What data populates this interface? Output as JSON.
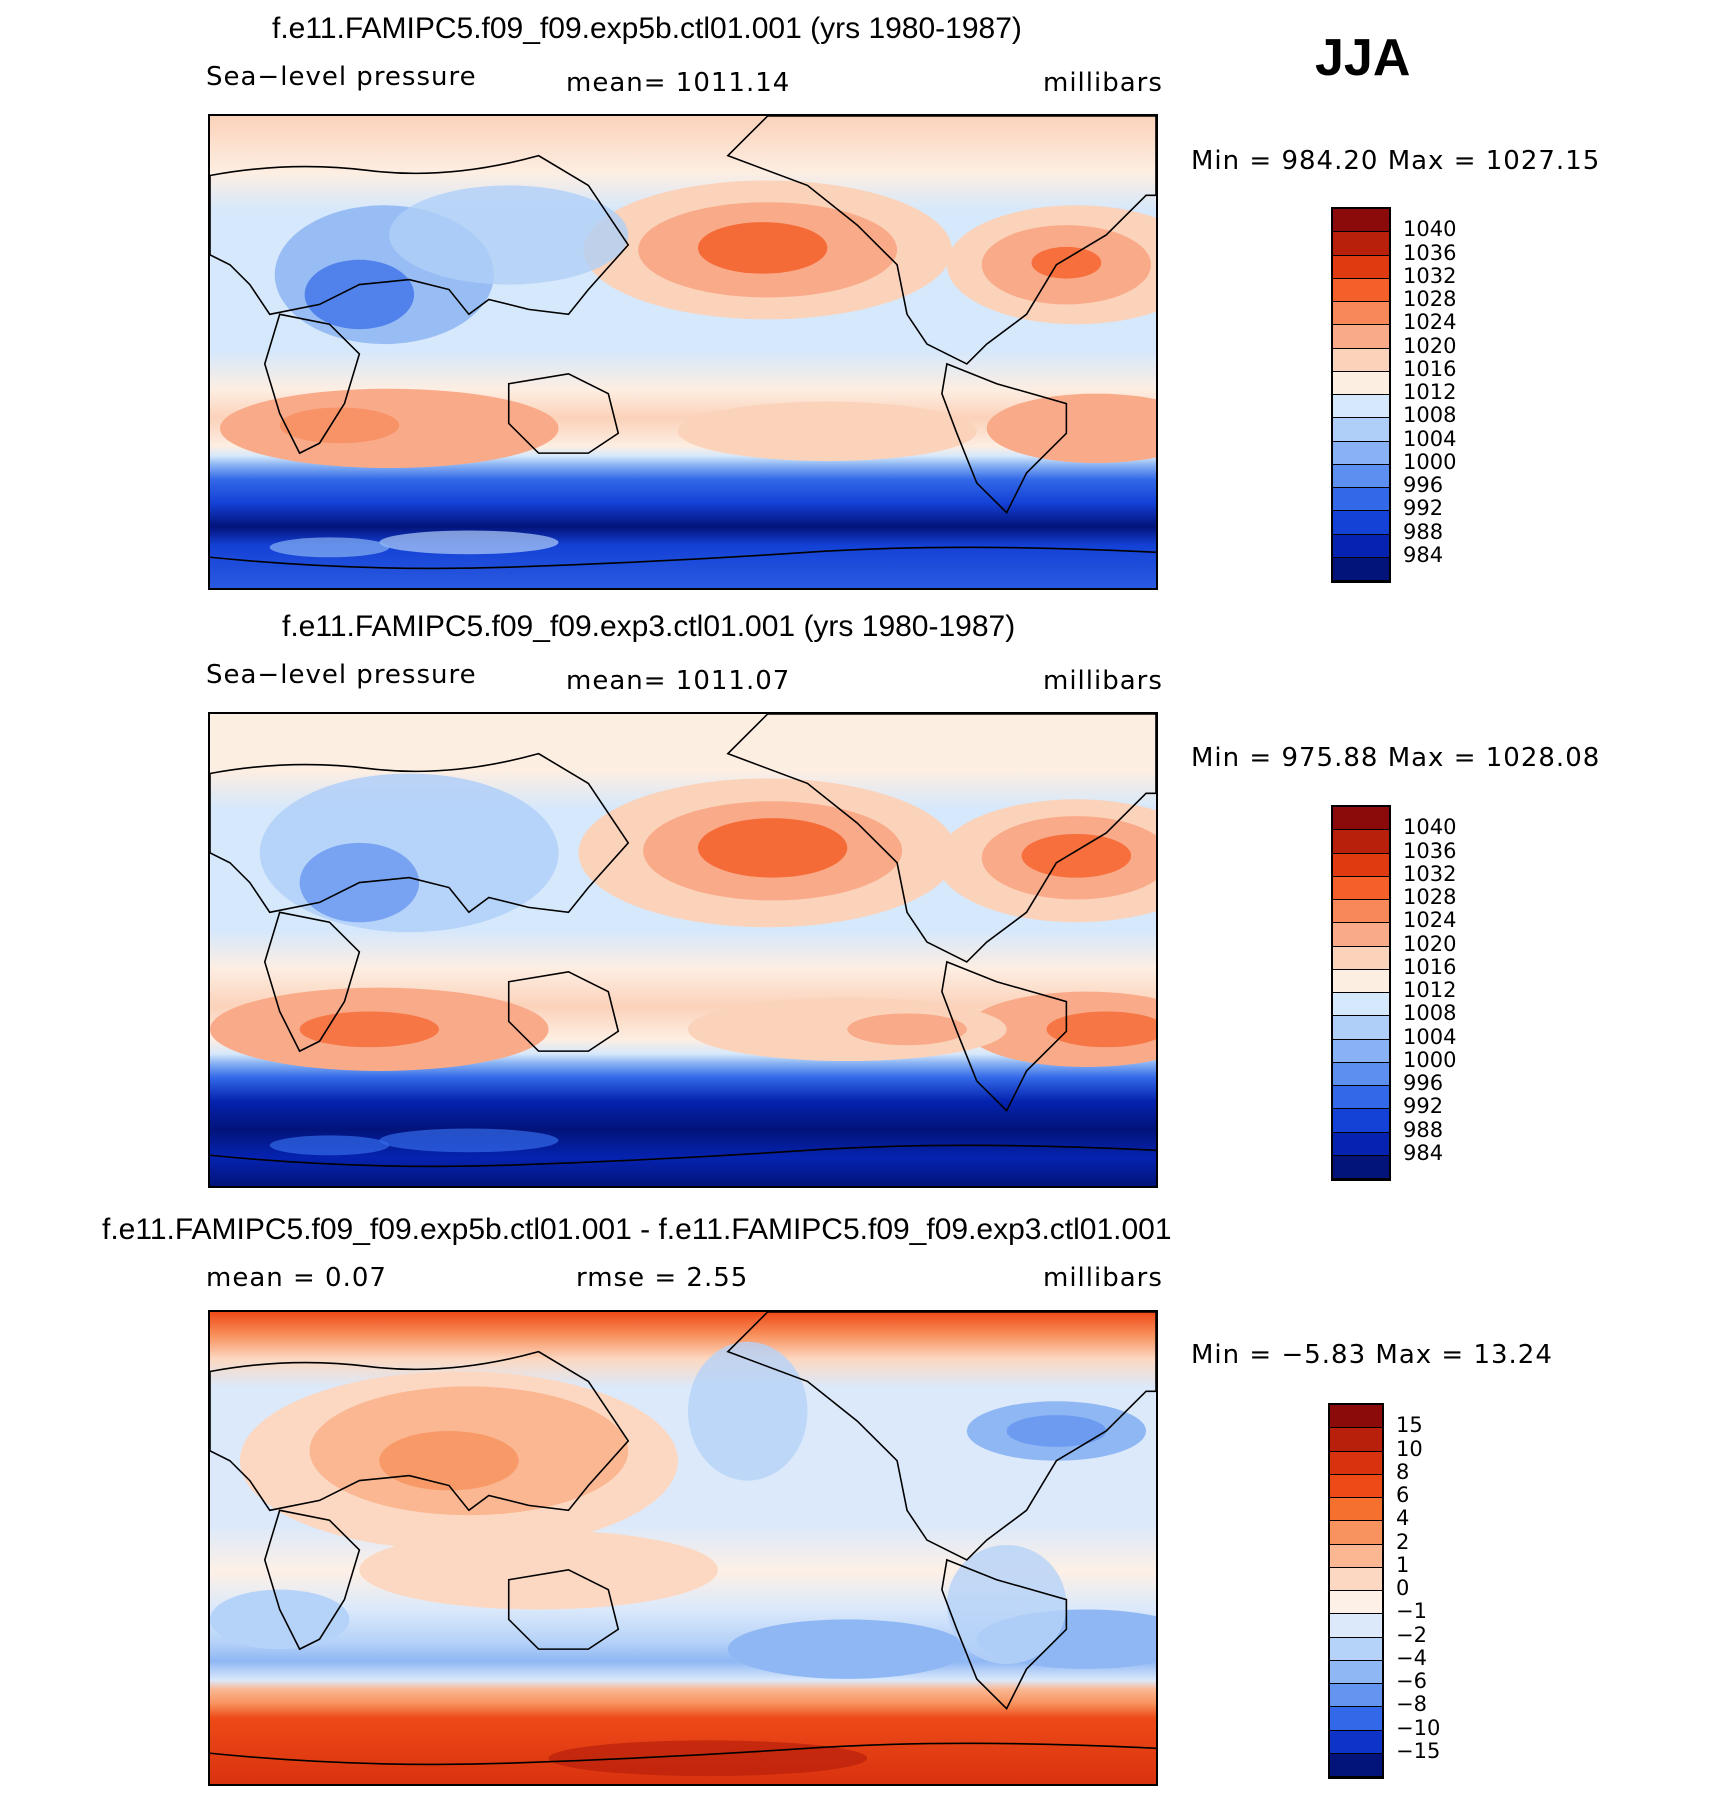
{
  "season": "JJA",
  "panels": [
    {
      "title": "f.e11.FAMIPC5.f09_f09.exp5b.ctl01.001 (yrs 1980-1987)",
      "variable": "Sea−level pressure",
      "stat_text": "mean=  1011.14",
      "units": "millibars",
      "minmax": "Min  =  984.20  Max  =  1027.15",
      "colorbar": {
        "labels": [
          "1040",
          "1036",
          "1032",
          "1028",
          "1024",
          "1020",
          "1016",
          "1012",
          "1008",
          "1004",
          "1000",
          "996",
          "992",
          "988",
          "984"
        ],
        "colors": [
          "#8b0a0a",
          "#b8200c",
          "#e03a10",
          "#f5602a",
          "#f8875a",
          "#f9aa88",
          "#fbd2ba",
          "#fdeee2",
          "#d6e8fb",
          "#b0cff8",
          "#88b2f3",
          "#5d8ff0",
          "#3369e8",
          "#1441d6",
          "#0523b0",
          "#02137a"
        ]
      },
      "legend_min": 984.2,
      "legend_max": 1027.15
    },
    {
      "title": "f.e11.FAMIPC5.f09_f09.exp3.ctl01.001 (yrs 1980-1987)",
      "variable": "Sea−level pressure",
      "stat_text": "mean=  1011.07",
      "units": "millibars",
      "minmax": "Min  =  975.88  Max  =  1028.08",
      "colorbar": {
        "labels": [
          "1040",
          "1036",
          "1032",
          "1028",
          "1024",
          "1020",
          "1016",
          "1012",
          "1008",
          "1004",
          "1000",
          "996",
          "992",
          "988",
          "984"
        ],
        "colors": [
          "#8b0a0a",
          "#b8200c",
          "#e03a10",
          "#f5602a",
          "#f8875a",
          "#f9aa88",
          "#fbd2ba",
          "#fdeee2",
          "#d6e8fb",
          "#b0cff8",
          "#88b2f3",
          "#5d8ff0",
          "#3369e8",
          "#1441d6",
          "#0523b0",
          "#02137a"
        ]
      },
      "legend_min": 975.88,
      "legend_max": 1028.08
    },
    {
      "title": "f.e11.FAMIPC5.f09_f09.exp5b.ctl01.001 - f.e11.FAMIPC5.f09_f09.exp3.ctl01.001",
      "mean_text": "mean  =     0.07",
      "rmse_text": "rmse  =     2.55",
      "units": "millibars",
      "minmax": "Min  =    −5.83  Max  =    13.24",
      "colorbar": {
        "labels": [
          "15",
          "10",
          "8",
          "6",
          "4",
          "2",
          "1",
          "0",
          "−1",
          "−2",
          "−4",
          "−6",
          "−8",
          "−10",
          "−15"
        ],
        "colors": [
          "#8b0a0a",
          "#b8200c",
          "#d9320f",
          "#ee4a18",
          "#f5702f",
          "#f8925e",
          "#fab792",
          "#fcd8c2",
          "#fdf0e6",
          "#dbe9fb",
          "#b5d2f8",
          "#8fb7f4",
          "#6394ef",
          "#3369e8",
          "#0d33c8",
          "#02137a"
        ]
      },
      "legend_min": -5.83,
      "legend_max": 13.24
    }
  ]
}
